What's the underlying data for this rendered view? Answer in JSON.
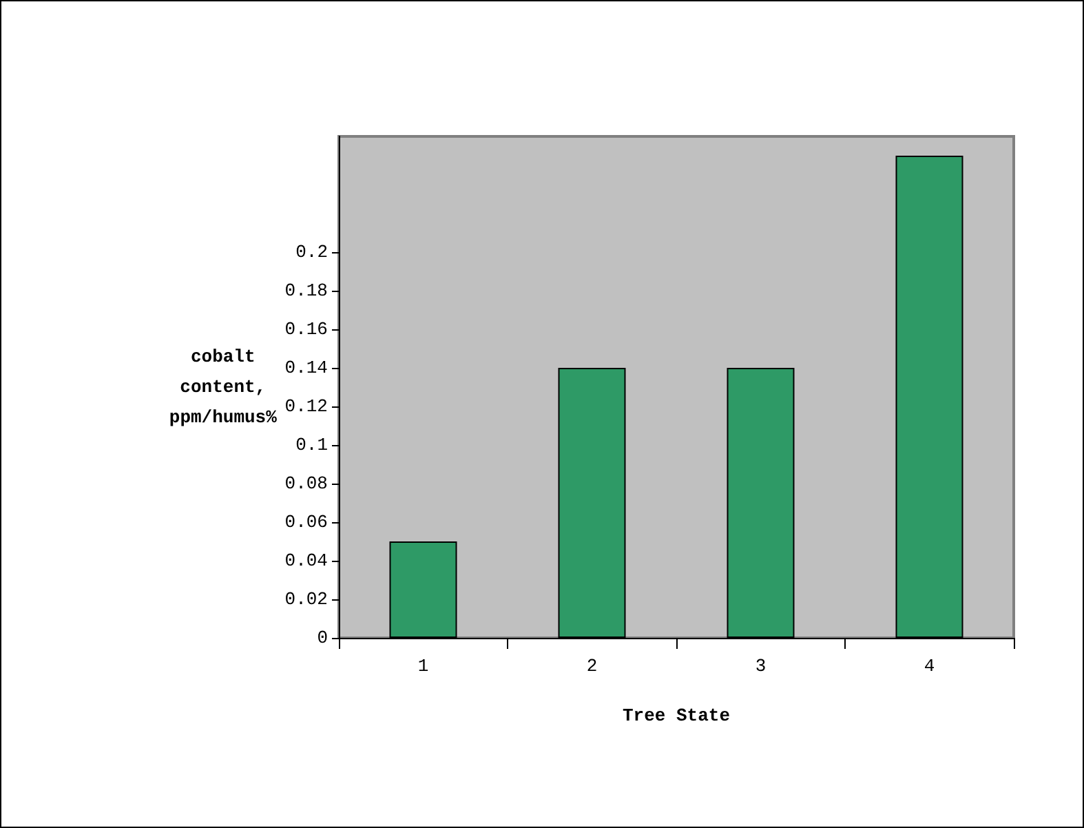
{
  "chart_data": {
    "type": "bar",
    "xlabel": "Tree State",
    "ylabel": "cobalt\ncontent,\nppm/humus%",
    "categories": [
      "1",
      "2",
      "3",
      "4"
    ],
    "values": [
      0.05,
      0.14,
      0.14,
      0.25
    ],
    "color": "#2e9a66",
    "ylim": [
      0,
      0.26
    ],
    "yticks": [
      0,
      0.02,
      0.04,
      0.06,
      0.08,
      0.1,
      0.12,
      0.14,
      0.16,
      0.18,
      0.2
    ],
    "grid": false
  }
}
